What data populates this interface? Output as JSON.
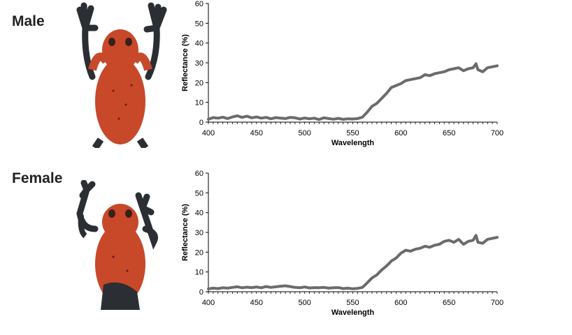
{
  "panels": [
    {
      "label": "Male"
    },
    {
      "label": "Female"
    }
  ],
  "colors": {
    "line": "#6b6b6b",
    "frog_body": "#c8482a",
    "frog_dark": "#2b2f33",
    "axis": "#000000"
  },
  "icons": [
    "frog-dorsal-male",
    "frog-dorsal-female"
  ],
  "chart_data": [
    {
      "type": "line",
      "panel": "Male",
      "xlabel": "Wavelength",
      "ylabel": "Reflectance (%)",
      "xlim": [
        400,
        700
      ],
      "ylim": [
        0,
        60
      ],
      "xticks": [
        400,
        450,
        500,
        550,
        600,
        650,
        700
      ],
      "yticks": [
        0,
        10,
        20,
        30,
        40,
        50,
        60
      ],
      "grid": false,
      "series": [
        {
          "x": [
            400,
            405,
            410,
            415,
            420,
            425,
            430,
            435,
            440,
            445,
            450,
            455,
            460,
            465,
            470,
            475,
            480,
            485,
            490,
            495,
            500,
            505,
            510,
            515,
            520,
            525,
            530,
            535,
            540,
            545,
            550,
            555,
            560,
            565,
            570,
            575,
            580,
            585,
            590,
            595,
            600,
            605,
            610,
            615,
            620,
            625,
            630,
            635,
            640,
            645,
            650,
            655,
            660,
            665,
            670,
            675,
            678,
            680,
            685,
            690,
            695,
            700
          ],
          "values": [
            1.5,
            2.3,
            2.0,
            2.5,
            1.8,
            2.6,
            3.2,
            2.4,
            3.0,
            2.2,
            2.6,
            2.0,
            2.4,
            1.7,
            2.3,
            2.0,
            1.8,
            2.4,
            2.2,
            1.6,
            2.1,
            1.7,
            2.0,
            1.3,
            2.2,
            1.8,
            1.5,
            1.9,
            1.4,
            1.7,
            1.6,
            1.8,
            2.5,
            5.0,
            8.0,
            9.5,
            12.0,
            14.5,
            17.5,
            18.5,
            19.5,
            21.0,
            21.5,
            22.0,
            22.5,
            24.0,
            23.5,
            24.5,
            25.0,
            25.5,
            26.5,
            27.0,
            27.5,
            26.0,
            27.0,
            27.5,
            29.5,
            26.5,
            25.5,
            27.5,
            28.0,
            28.5
          ]
        }
      ]
    },
    {
      "type": "line",
      "panel": "Female",
      "xlabel": "Wavelength",
      "ylabel": "Reflectance (%)",
      "xlim": [
        400,
        700
      ],
      "ylim": [
        0,
        60
      ],
      "xticks": [
        400,
        450,
        500,
        550,
        600,
        650,
        700
      ],
      "yticks": [
        0,
        10,
        20,
        30,
        40,
        50,
        60
      ],
      "grid": false,
      "series": [
        {
          "x": [
            400,
            405,
            410,
            415,
            420,
            425,
            430,
            435,
            440,
            445,
            450,
            455,
            460,
            465,
            470,
            475,
            480,
            485,
            490,
            495,
            500,
            505,
            510,
            515,
            520,
            525,
            530,
            535,
            540,
            545,
            550,
            555,
            560,
            565,
            570,
            575,
            580,
            585,
            590,
            595,
            600,
            605,
            610,
            615,
            620,
            625,
            630,
            635,
            640,
            645,
            650,
            655,
            660,
            665,
            670,
            675,
            678,
            680,
            685,
            690,
            695,
            700
          ],
          "values": [
            1.5,
            1.8,
            1.6,
            2.0,
            1.8,
            2.2,
            2.5,
            2.0,
            2.3,
            2.1,
            2.4,
            2.0,
            2.6,
            2.2,
            2.5,
            2.8,
            3.0,
            2.6,
            2.2,
            2.0,
            2.4,
            1.9,
            2.1,
            2.0,
            2.2,
            1.8,
            2.0,
            2.1,
            1.6,
            1.8,
            1.5,
            1.7,
            2.2,
            4.5,
            7.0,
            8.5,
            11.0,
            13.0,
            15.5,
            17.0,
            19.5,
            21.0,
            20.5,
            21.5,
            22.0,
            23.0,
            22.5,
            23.5,
            24.0,
            25.5,
            26.0,
            25.0,
            26.5,
            24.0,
            25.5,
            26.0,
            28.5,
            25.0,
            24.5,
            26.5,
            27.0,
            27.5
          ]
        }
      ]
    }
  ]
}
